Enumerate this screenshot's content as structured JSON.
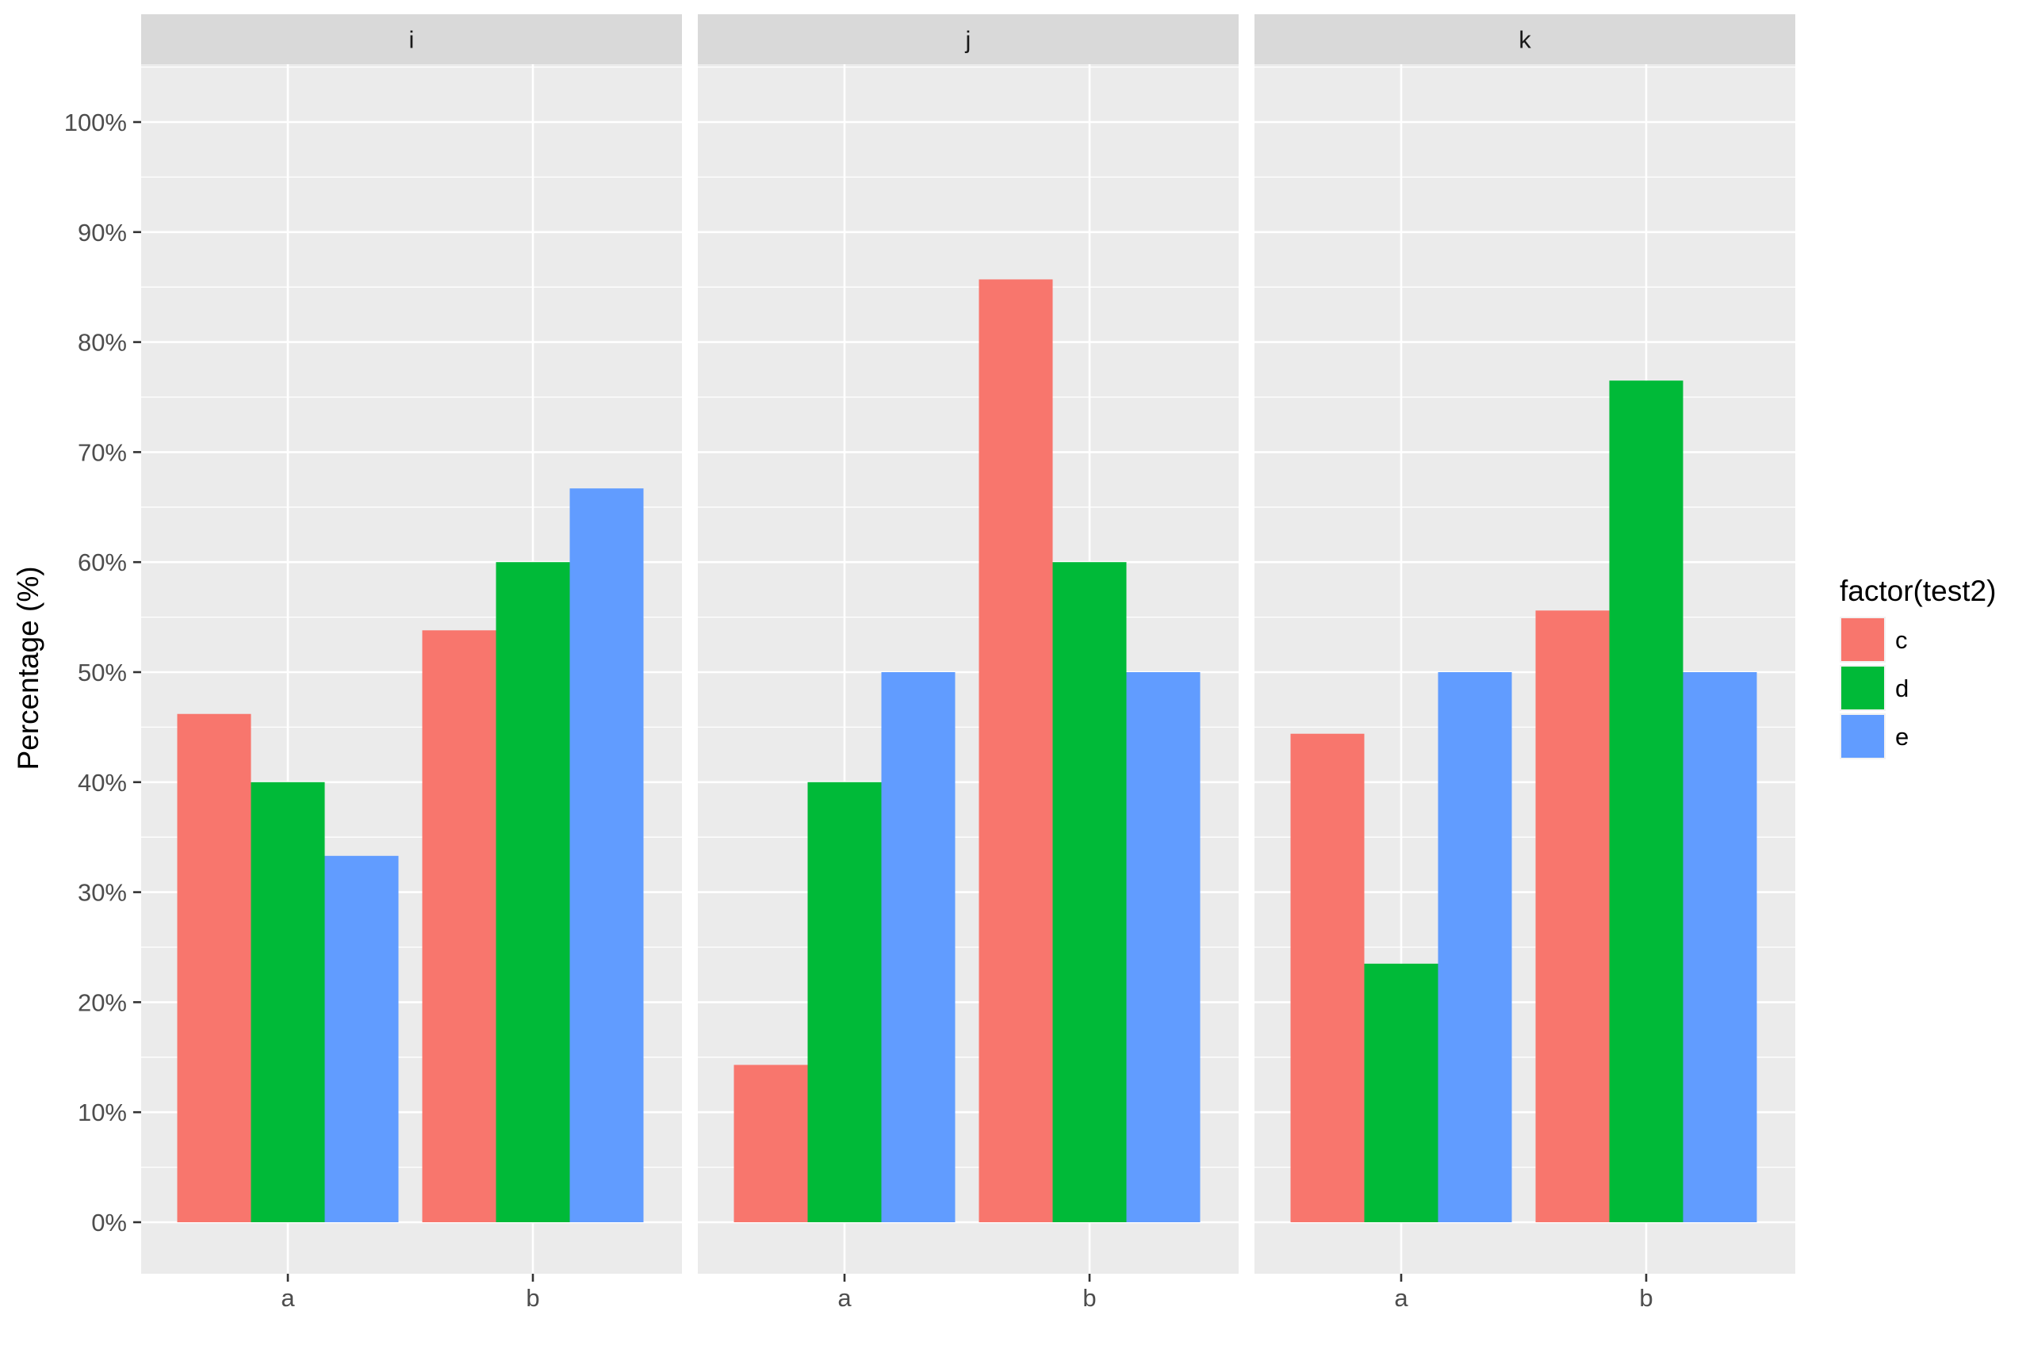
{
  "chart_data": {
    "type": "bar",
    "facet_variable_values": [
      "i",
      "j",
      "k"
    ],
    "categories": [
      "a",
      "b"
    ],
    "ylabel": "Percentage (%)",
    "xlabel": "",
    "ylim": [
      0,
      1.05
    ],
    "y_ticks": [
      0,
      0.1,
      0.2,
      0.3,
      0.4,
      0.5,
      0.6,
      0.7,
      0.8,
      0.9,
      1.0
    ],
    "y_tick_labels": [
      "0%",
      "10%",
      "20%",
      "30%",
      "40%",
      "50%",
      "60%",
      "70%",
      "80%",
      "90%",
      "100%"
    ],
    "legend": {
      "title": "factor(test2)",
      "position": "right",
      "entries": [
        {
          "name": "c",
          "color": "#F8766D"
        },
        {
          "name": "d",
          "color": "#00BA38"
        },
        {
          "name": "e",
          "color": "#619CFF"
        }
      ]
    },
    "facets": [
      {
        "label": "i",
        "series": [
          {
            "name": "c",
            "values": [
              0.462,
              0.538
            ]
          },
          {
            "name": "d",
            "values": [
              0.4,
              0.6
            ]
          },
          {
            "name": "e",
            "values": [
              0.333,
              0.667
            ]
          }
        ]
      },
      {
        "label": "j",
        "series": [
          {
            "name": "c",
            "values": [
              0.143,
              0.857
            ]
          },
          {
            "name": "d",
            "values": [
              0.4,
              0.6
            ]
          },
          {
            "name": "e",
            "values": [
              0.5,
              0.5
            ]
          }
        ]
      },
      {
        "label": "k",
        "series": [
          {
            "name": "c",
            "values": [
              0.444,
              0.556
            ]
          },
          {
            "name": "d",
            "values": [
              0.235,
              0.765
            ]
          },
          {
            "name": "e",
            "values": [
              0.5,
              0.5
            ]
          }
        ]
      }
    ],
    "grid": true,
    "panel_background": "#EBEBEB",
    "strip_background": "#D9D9D9"
  }
}
